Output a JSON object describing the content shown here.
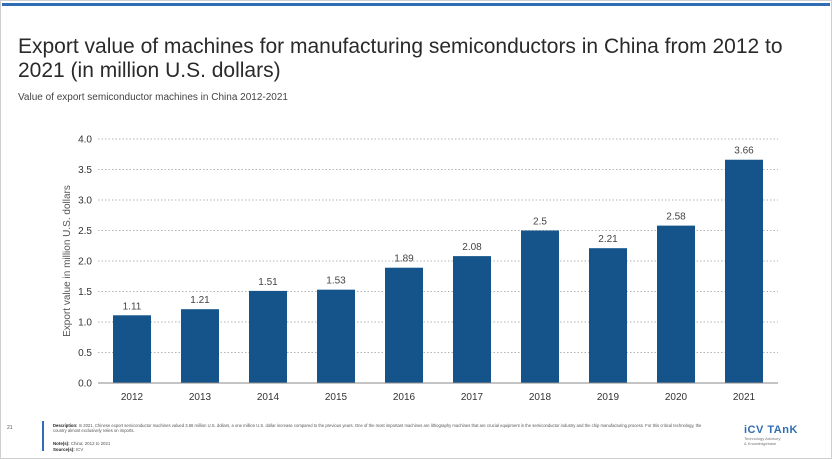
{
  "title": "Export value of machines for manufacturing semiconductors in China from 2012 to 2021 (in million U.S. dollars)",
  "subtitle": "Value of export semiconductor machines in China 2012-2021",
  "chart_data": {
    "type": "bar",
    "categories": [
      "2012",
      "2013",
      "2014",
      "2015",
      "2016",
      "2017",
      "2018",
      "2019",
      "2020",
      "2021"
    ],
    "values": [
      1.11,
      1.21,
      1.51,
      1.53,
      1.89,
      2.08,
      2.5,
      2.21,
      2.58,
      3.66
    ],
    "value_labels": [
      "1.11",
      "1.21",
      "1.51",
      "1.53",
      "1.89",
      "2.08",
      "2.5",
      "2.21",
      "2.58",
      "3.66"
    ],
    "ylabel": "Export value in million U.S. dollars",
    "xlabel": "",
    "ylim": [
      0,
      4.0
    ],
    "yticks": [
      "0.0",
      "0.5",
      "1.0",
      "1.5",
      "2.0",
      "2.5",
      "3.0",
      "3.5",
      "4.0"
    ],
    "bar_color": "#14548a",
    "grid": true,
    "legend": "none"
  },
  "footer": {
    "page_number": "21",
    "description_label": "Description:",
    "description_text": "In 2021, Chinese export semiconductor machines valued 3.66 million U.S. dollars, a one million U.S. dollar increase compared to the previous years. One of the most important machines are lithography machines that are crucial equipment in the semiconductor industry and the chip manufacturing process. For this critical technology, the country almost exclusively relies on imports.",
    "note_label": "Note(s):",
    "note_text": "China; 2012 to 2021",
    "source_label": "Source(s):",
    "source_text": "ICV"
  },
  "logo": {
    "name": "iCV TAnK",
    "tagline_1": "Technology Advisory",
    "tagline_2": "& Knowledgebase"
  },
  "colors": {
    "accent": "#2f6eb5",
    "bar": "#14548a"
  }
}
